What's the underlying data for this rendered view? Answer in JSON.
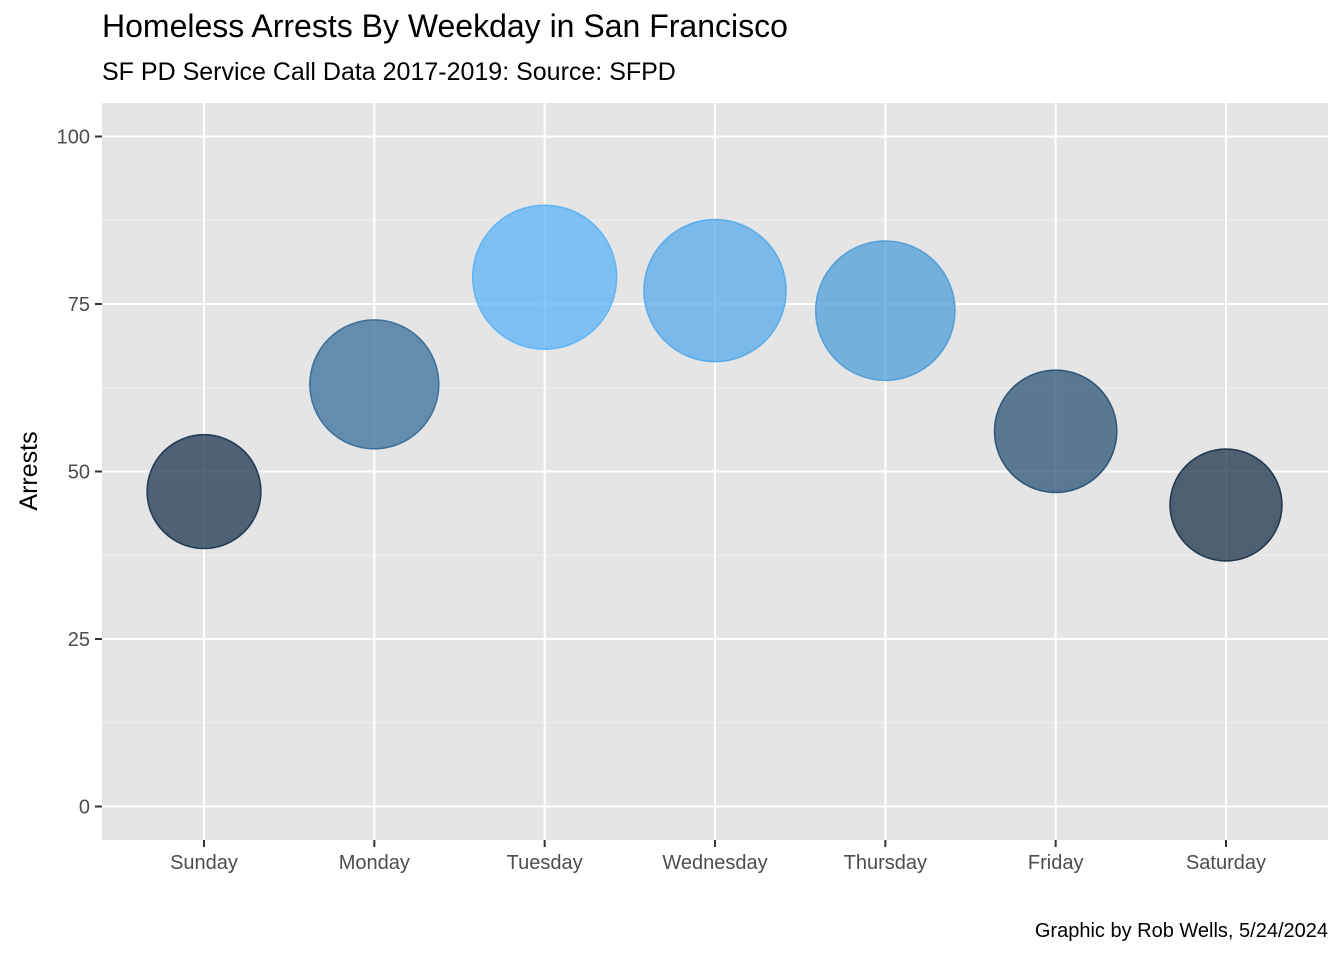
{
  "chart_data": {
    "type": "scatter",
    "title": "Homeless Arrests By Weekday in San Francisco",
    "subtitle": "SF PD Service Call Data 2017-2019: Source: SFPD",
    "caption": "Graphic by Rob Wells, 5/24/2024",
    "xlabel": "",
    "ylabel": "Arrests",
    "categories": [
      "Sunday",
      "Monday",
      "Tuesday",
      "Wednesday",
      "Thursday",
      "Friday",
      "Saturday"
    ],
    "values": [
      47,
      63,
      79,
      77,
      74,
      56,
      45
    ],
    "ylim": [
      0,
      100
    ],
    "yticks": [
      0,
      25,
      50,
      75,
      100
    ],
    "size_by": "value",
    "color_by": "value",
    "color_low": "#132b43",
    "color_high": "#56b1f7",
    "grid": true,
    "legend": "none"
  }
}
